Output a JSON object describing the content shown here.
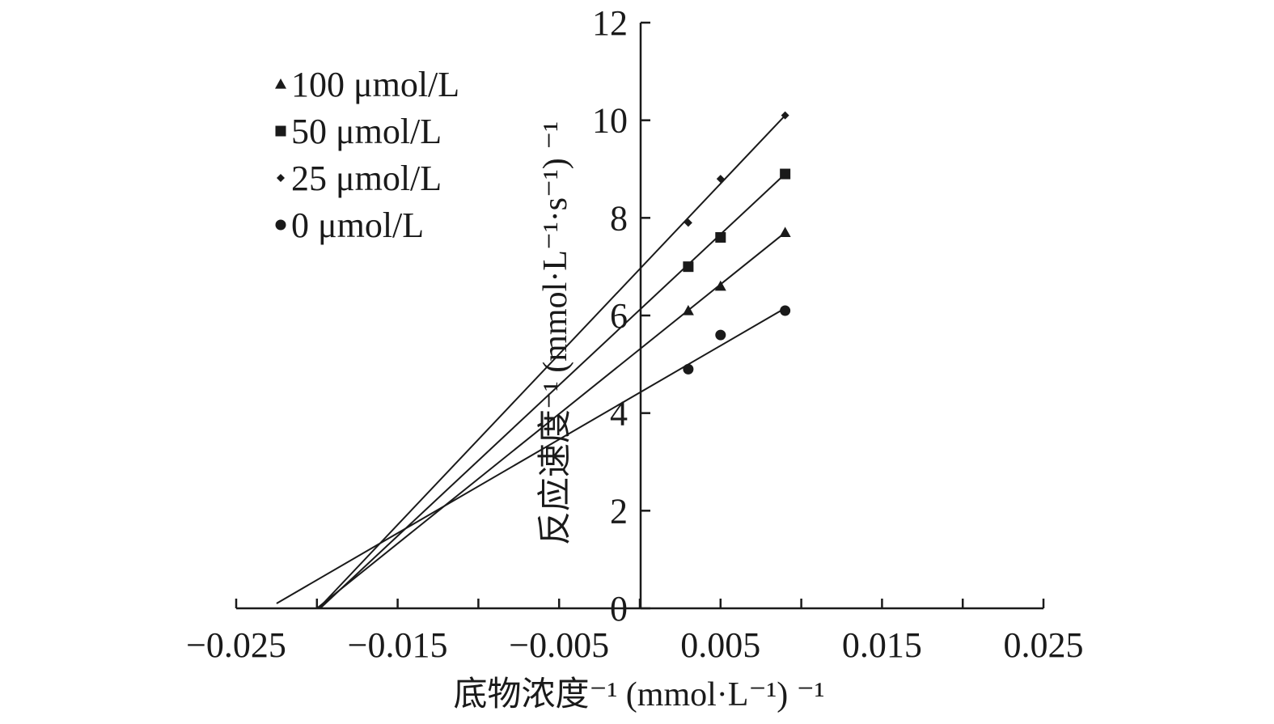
{
  "chart_data": {
    "type": "scatter",
    "title": "",
    "xlabel": "底物浓度⁻¹ (mmol·L⁻¹) ⁻¹",
    "ylabel": "反应速度⁻¹ (mmol·L⁻¹·s⁻¹) ⁻¹",
    "xlim": [
      -0.025,
      0.025
    ],
    "ylim": [
      0,
      12
    ],
    "x_ticks": [
      -0.025,
      -0.02,
      -0.015,
      -0.01,
      -0.005,
      0,
      0.005,
      0.01,
      0.015,
      0.02,
      0.025
    ],
    "x_tick_labels": [
      "−0.025",
      "−0.015",
      "−0.005",
      "0.005",
      "0.015",
      "0.025"
    ],
    "x_tick_label_values": [
      -0.025,
      -0.015,
      -0.005,
      0.005,
      0.015,
      0.025
    ],
    "y_ticks": [
      0,
      2,
      4,
      6,
      8,
      10,
      12
    ],
    "y_tick_labels": [
      "0",
      "2",
      "4",
      "6",
      "8",
      "10",
      "12"
    ],
    "grid": false,
    "legend_position": "top-left",
    "x": [
      0.003,
      0.005,
      0.009
    ],
    "series": [
      {
        "name": "100 μmol/L",
        "marker": "triangle",
        "values": [
          6.1,
          6.6,
          7.7
        ],
        "fit": {
          "x_start": -0.02,
          "y_start": 0,
          "x_end": 0.009,
          "y_end": 7.7
        }
      },
      {
        "name": "50 μmol/L",
        "marker": "square",
        "values": [
          7.0,
          7.6,
          8.9
        ],
        "fit": {
          "x_start": -0.0198,
          "y_start": 0,
          "x_end": 0.009,
          "y_end": 8.9
        }
      },
      {
        "name": "25 μmol/L",
        "marker": "diamond",
        "values": [
          7.9,
          8.8,
          10.1
        ],
        "fit": {
          "x_start": -0.0199,
          "y_start": 0,
          "x_end": 0.009,
          "y_end": 10.1
        }
      },
      {
        "name": "0 μmol/L",
        "marker": "circle",
        "values": [
          4.9,
          5.6,
          6.1
        ],
        "fit": {
          "x_start": -0.0225,
          "y_start": 0.1,
          "x_end": 0.009,
          "y_end": 6.15
        }
      }
    ]
  }
}
